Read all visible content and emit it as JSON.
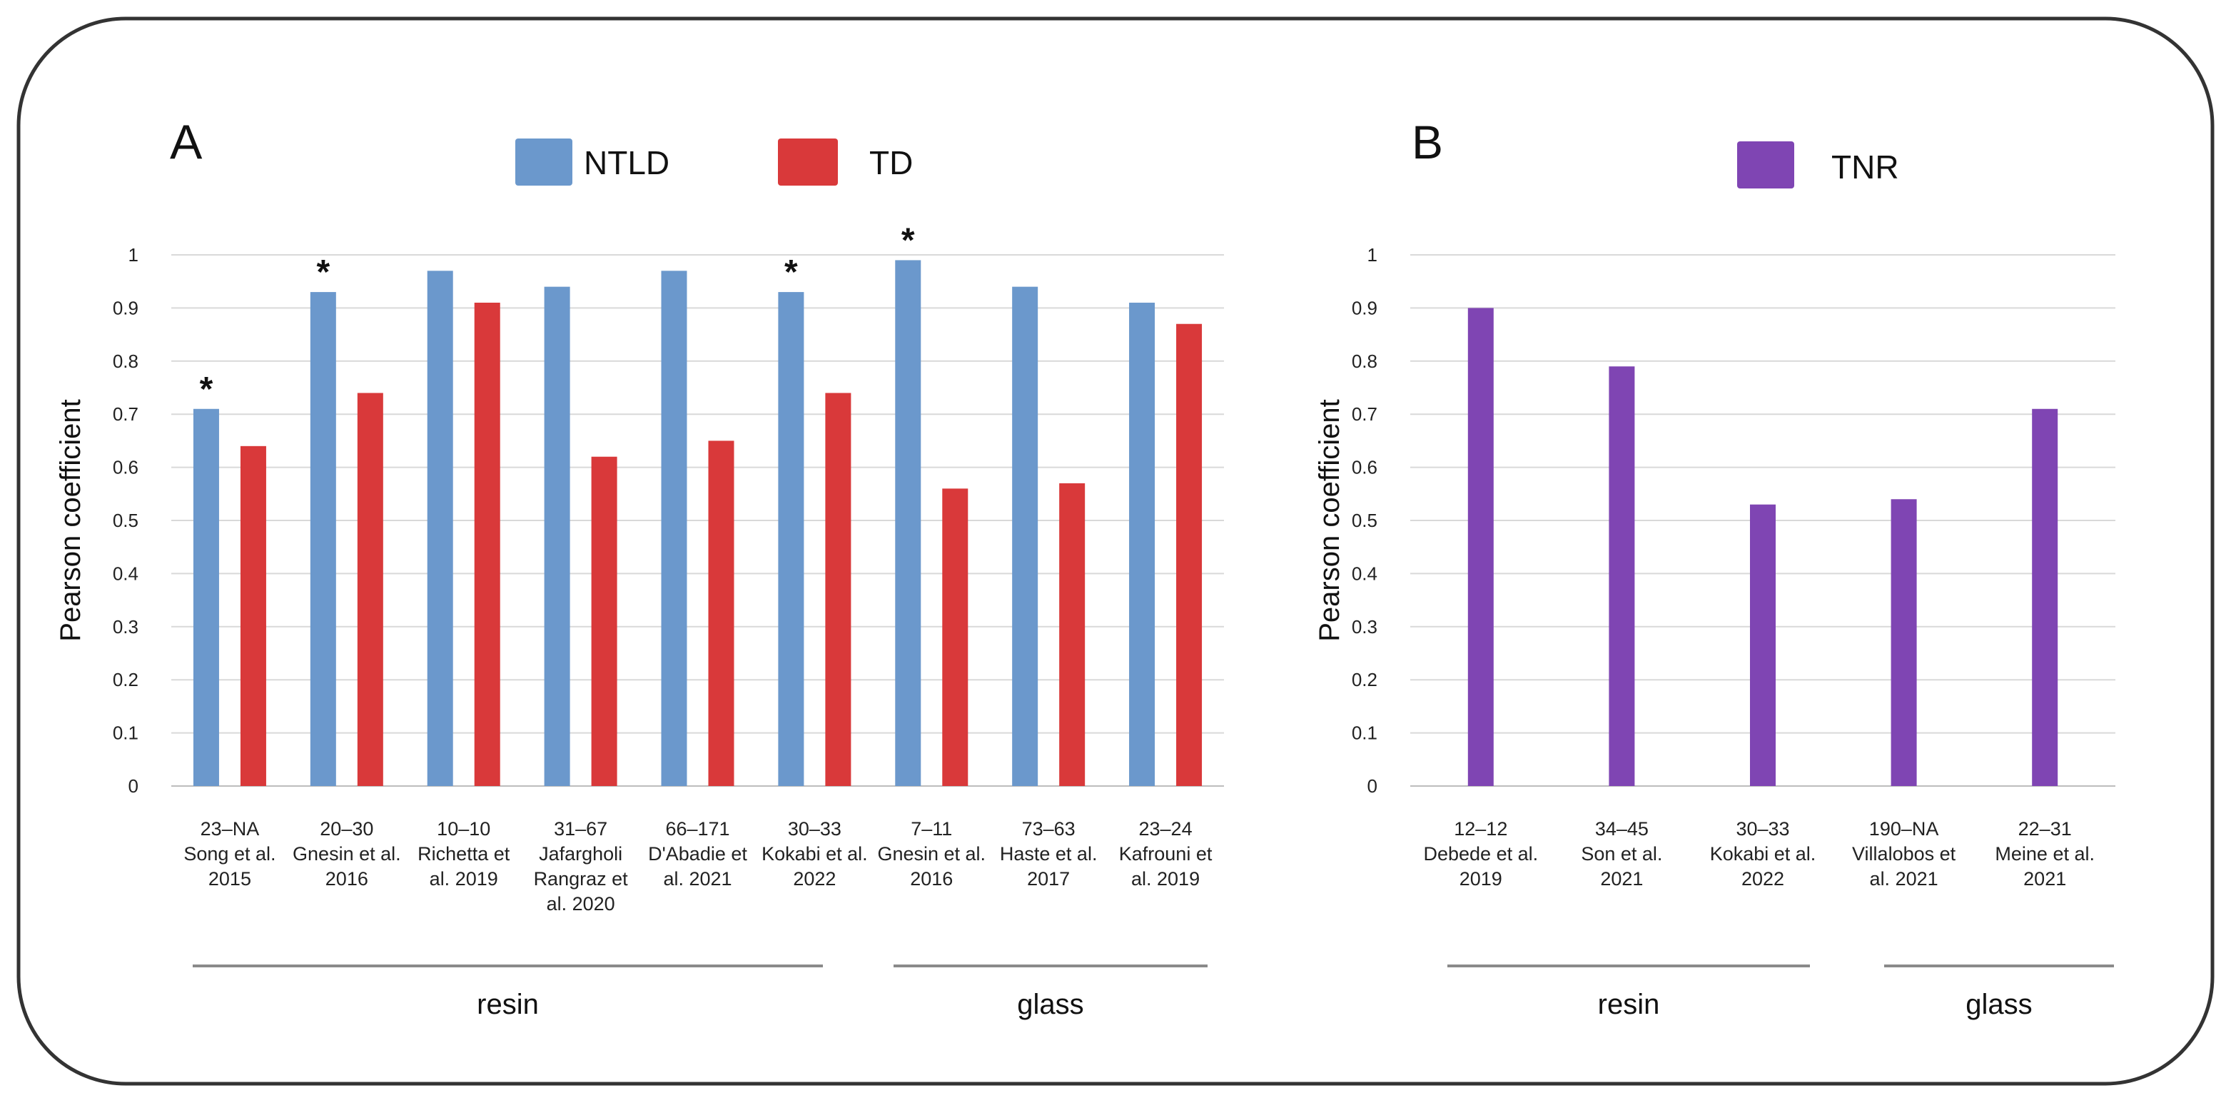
{
  "figure": {
    "panel_a_letter": "A",
    "panel_b_letter": "B",
    "colors": {
      "ntld": "#6b98cc",
      "td": "#d9393a",
      "tnr": "#7f45b3",
      "frame": "#333333",
      "grid": "#d6d6d6"
    }
  },
  "chart_data": [
    {
      "type": "bar",
      "panel": "A",
      "title": "",
      "xlabel": "",
      "ylabel": "Pearson coefficient",
      "ylim": [
        0,
        1
      ],
      "yticks": [
        "0",
        "0.1",
        "0.2",
        "0.3",
        "0.4",
        "0.5",
        "0.6",
        "0.7",
        "0.8",
        "0.9",
        "1"
      ],
      "legend_position": "top",
      "categories": [
        {
          "range": "23–NA",
          "line2": "Song et al.",
          "line3": "2015",
          "line4": ""
        },
        {
          "range": "20–30",
          "line2": "Gnesin et al.",
          "line3": "2016",
          "line4": ""
        },
        {
          "range": "10–10",
          "line2": "Richetta et",
          "line3": "al. 2019",
          "line4": ""
        },
        {
          "range": "31–67",
          "line2": "Jafargholi",
          "line3": "Rangraz et",
          "line4": "al. 2020"
        },
        {
          "range": "66–171",
          "line2": "D'Abadie et",
          "line3": "al. 2021",
          "line4": ""
        },
        {
          "range": "30–33",
          "line2": "Kokabi et al.",
          "line3": "2022",
          "line4": ""
        },
        {
          "range": "7–11",
          "line2": "Gnesin et al.",
          "line3": "2016",
          "line4": ""
        },
        {
          "range": "73–63",
          "line2": "Haste et al.",
          "line3": "2017",
          "line4": ""
        },
        {
          "range": "23–24",
          "line2": "Kafrouni et",
          "line3": "al. 2019",
          "line4": ""
        }
      ],
      "series": [
        {
          "name": "NTLD",
          "values": [
            0.71,
            0.93,
            0.97,
            0.94,
            0.97,
            0.93,
            0.99,
            0.94,
            0.91
          ]
        },
        {
          "name": "TD",
          "values": [
            0.64,
            0.74,
            0.91,
            0.62,
            0.65,
            0.74,
            0.56,
            0.57,
            0.87
          ]
        }
      ],
      "significance_mark": "*",
      "significant": [
        true,
        true,
        false,
        false,
        false,
        true,
        true,
        false,
        false
      ],
      "groups": [
        {
          "label": "resin",
          "from": 0,
          "to": 5
        },
        {
          "label": "glass",
          "from": 6,
          "to": 8
        }
      ]
    },
    {
      "type": "bar",
      "panel": "B",
      "title": "",
      "xlabel": "",
      "ylabel": "Pearson coefficient",
      "ylim": [
        0,
        1
      ],
      "yticks": [
        "0",
        "0.1",
        "0.2",
        "0.3",
        "0.4",
        "0.5",
        "0.6",
        "0.7",
        "0.8",
        "0.9",
        "1"
      ],
      "legend_position": "top",
      "categories": [
        {
          "range": "12–12",
          "line2": "Debede et al.",
          "line3": "2019",
          "line4": ""
        },
        {
          "range": "34–45",
          "line2": "Son et al.",
          "line3": "2021",
          "line4": ""
        },
        {
          "range": "30–33",
          "line2": "Kokabi et al.",
          "line3": "2022",
          "line4": ""
        },
        {
          "range": "190–NA",
          "line2": "Villalobos et",
          "line3": "al. 2021",
          "line4": ""
        },
        {
          "range": "22–31",
          "line2": "Meine et al.",
          "line3": "2021",
          "line4": ""
        }
      ],
      "series": [
        {
          "name": "TNR",
          "values": [
            0.9,
            0.79,
            0.53,
            0.54,
            0.71
          ]
        }
      ],
      "significance_mark": "*",
      "significant": [
        false,
        false,
        false,
        false,
        false
      ],
      "groups": [
        {
          "label": "resin",
          "from": 0,
          "to": 2
        },
        {
          "label": "glass",
          "from": 3,
          "to": 4
        }
      ]
    }
  ]
}
